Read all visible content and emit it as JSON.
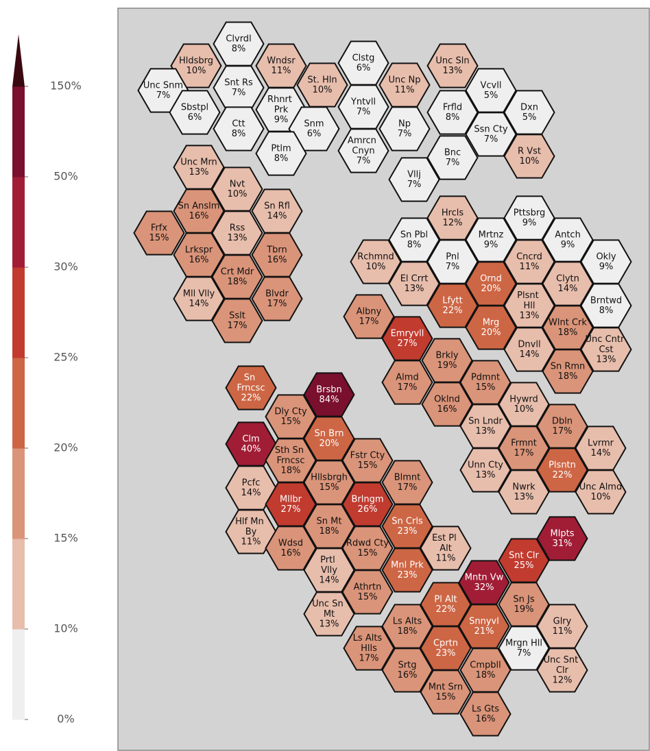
{
  "chart_data": {
    "type": "hexmap",
    "categories": [
      "Clvrdl",
      "Hldsbrg",
      "Wndsr",
      "Unc Snm",
      "Snt Rs",
      "Sbstpl",
      "Rhnrt Prk",
      "Ctt",
      "Snm",
      "Ptlm",
      "Clstg",
      "St. Hln",
      "Unc Np",
      "Yntvll",
      "Np",
      "Amrcn Cnyn",
      "Unc Sln",
      "Vcvll",
      "Frfld",
      "Dxn",
      "Ssn Cty",
      "Bnc",
      "R Vst",
      "Vllj",
      "Unc Mrn",
      "Nvt",
      "Sn Anslm",
      "Sn Rfl",
      "Frfx",
      "Rss",
      "Lrkspr",
      "Tbrn",
      "Crt Mdr",
      "Mll Vlly",
      "Blvdr",
      "Sslt",
      "Hrcls",
      "Pttsbrg",
      "Sn Pbl",
      "Mrtnz",
      "Antch",
      "Rchmnd",
      "Pnl",
      "Cncrd",
      "Okly",
      "El Crrt",
      "Ornd",
      "Clytn",
      "Lfytt",
      "Plsnt Hll",
      "Brntwd",
      "Albny",
      "Mrg",
      "Wlnt Crk",
      "Emryvll",
      "Dnvll",
      "Unc Cntr Cst",
      "Brkly",
      "Almd",
      "Sn Rmn",
      "Pdmnt",
      "Oklnd",
      "Hywrd",
      "Sn Lndr",
      "Dbln",
      "Frmnt",
      "Lvrmr",
      "Unn Cty",
      "Plsntn",
      "Nwrk",
      "Unc Almd",
      "Sn Frncsc",
      "Brsbn",
      "Dly Cty",
      "Clm",
      "Sn Brn",
      "Sth Sn Frncsc",
      "Fstr Cty",
      "Pcfc",
      "Hllsbrgh",
      "Blmnt",
      "Mllbr",
      "Brlngm",
      "Hlf Mn By",
      "Sn Mt",
      "Sn Crls",
      "Wdsd",
      "Rdwd Cty",
      "Est Pl Alt",
      "Prtl Vlly",
      "Mnl Prk",
      "Athrtn",
      "Unc Sn Mt",
      "Mlpts",
      "Snt Clr",
      "Mntn Vw",
      "Pl Alt",
      "Sn Js",
      "Snnyvl",
      "Glry",
      "Ls Alts",
      "Ls Alts Hlls",
      "Cprtn",
      "Mrgn Hll",
      "Srtg",
      "Cmpbll",
      "Unc Snt Clr",
      "Mnt Srn",
      "Ls Gts"
    ],
    "values": [
      8,
      10,
      11,
      7,
      7,
      6,
      9,
      8,
      6,
      8,
      6,
      10,
      11,
      7,
      7,
      7,
      13,
      5,
      8,
      5,
      7,
      7,
      10,
      7,
      13,
      10,
      16,
      14,
      15,
      13,
      16,
      16,
      18,
      14,
      17,
      17,
      12,
      9,
      8,
      9,
      9,
      10,
      7,
      11,
      9,
      13,
      20,
      14,
      22,
      13,
      8,
      17,
      20,
      18,
      27,
      14,
      13,
      19,
      17,
      18,
      15,
      16,
      10,
      13,
      17,
      17,
      14,
      13,
      22,
      13,
      10,
      22,
      84,
      15,
      40,
      20,
      18,
      15,
      14,
      15,
      17,
      27,
      26,
      11,
      18,
      23,
      16,
      15,
      11,
      14,
      23,
      15,
      13,
      31,
      25,
      32,
      22,
      19,
      21,
      11,
      18,
      17,
      23,
      7,
      16,
      18,
      12,
      15,
      16
    ],
    "value_labels": [
      "8%",
      "10%",
      "11%",
      "7%",
      "7%",
      "6%",
      "9%",
      "8%",
      "6%",
      "8%",
      "6%",
      "10%",
      "11%",
      "7%",
      "7%",
      "7%",
      "13%",
      "5%",
      "8%",
      "5%",
      "7%",
      "7%",
      "10%",
      "7%",
      "13%",
      "10%",
      "16%",
      "14%",
      "15%",
      "13%",
      "16%",
      "16%",
      "18%",
      "14%",
      "17%",
      "17%",
      "12%",
      "9%",
      "8%",
      "9%",
      "9%",
      "10%",
      "7%",
      "11%",
      "9%",
      "13%",
      "20%",
      "14%",
      "22%",
      "13%",
      "8%",
      "17%",
      "20%",
      "18%",
      "27%",
      "14%",
      "13%",
      "19%",
      "17%",
      "18%",
      "15%",
      "16%",
      "10%",
      "13%",
      "17%",
      "17%",
      "14%",
      "13%",
      "22%",
      "13%",
      "10%",
      "22%",
      "84%",
      "15%",
      "40%",
      "20%",
      "18%",
      "15%",
      "14%",
      "15%",
      "17%",
      "27%",
      "26%",
      "11%",
      "18%",
      "23%",
      "16%",
      "15%",
      "11%",
      "14%",
      "23%",
      "15%",
      "13%",
      "31%",
      "25%",
      "32%",
      "22%",
      "19%",
      "21%",
      "11%",
      "18%",
      "17%",
      "23%",
      "7%",
      "16%",
      "18%",
      "12%",
      "15%",
      "16%"
    ],
    "colorbar_ticks": [
      {
        "value": 0,
        "label": "0%"
      },
      {
        "value": 10,
        "label": "10%"
      },
      {
        "value": 15,
        "label": "15%"
      },
      {
        "value": 20,
        "label": "20%"
      },
      {
        "value": 25,
        "label": "25%"
      },
      {
        "value": 30,
        "label": "30%"
      },
      {
        "value": 50,
        "label": "50%"
      },
      {
        "value": 150,
        "label": "150%"
      }
    ],
    "colors": [
      "#efefef",
      "#e7bdac",
      "#da9479",
      "#cd6645",
      "#c13b2f",
      "#a11d36",
      "#7a0f2e",
      "#3a0910"
    ]
  }
}
